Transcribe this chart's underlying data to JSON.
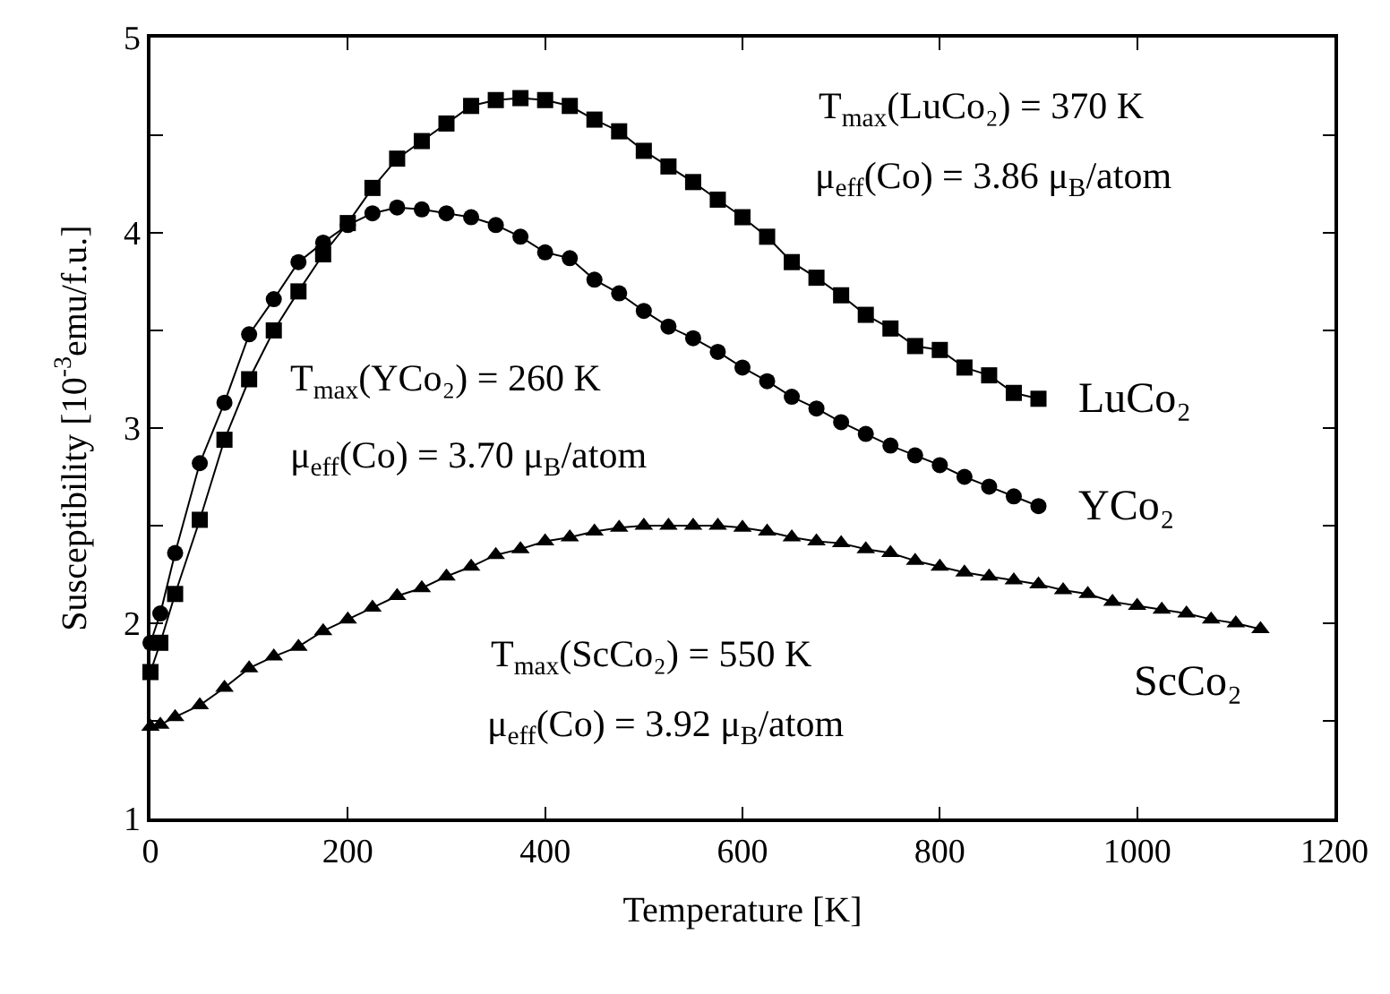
{
  "chart_data": {
    "type": "line",
    "xlabel": "Temperature [K]",
    "ylabel": "Susceptibility [10$^{-3}$emu/f.u.]",
    "xlim": [
      0,
      1200
    ],
    "xticks": [
      0,
      200,
      400,
      600,
      800,
      1000,
      1200
    ],
    "ylim": [
      1,
      5
    ],
    "yticks": [
      1,
      {
        "value": 1.5,
        "label": null
      },
      2,
      {
        "value": 2.5,
        "label": null
      },
      3,
      {
        "value": 3.5,
        "label": null
      },
      4,
      {
        "value": 4.5,
        "label": null
      },
      5
    ],
    "legend": false,
    "line_style": "solid",
    "annotations": [
      "T$_{max}$(LuCo₂) = 370 K",
      "μ$_{eff}$(Co) = 3.86 μ$_{B}$/atom",
      "T$_{max}$(YCo₂) = 260 K",
      "μ$_{eff}$(Co) = 3.70 μ$_{B}$/atom",
      "T$_{max}$(ScCo₂) = 550 K",
      "μ$_{eff}$(Co) = 3.92 μ$_{B}$/atom"
    ],
    "series": [
      {
        "name": "LuCo₂",
        "color": "#000000",
        "marker": "square",
        "x": [
          0,
          10,
          25,
          50,
          75,
          100,
          125,
          150,
          175,
          200,
          225,
          250,
          275,
          300,
          325,
          350,
          375,
          400,
          425,
          450,
          475,
          500,
          525,
          550,
          575,
          600,
          625,
          650,
          675,
          700,
          725,
          750,
          775,
          800,
          825,
          850,
          875,
          900
        ],
        "values": [
          1.75,
          1.9,
          2.15,
          2.53,
          2.94,
          3.25,
          3.5,
          3.7,
          3.89,
          4.05,
          4.23,
          4.38,
          4.47,
          4.56,
          4.65,
          4.68,
          4.69,
          4.68,
          4.65,
          4.58,
          4.52,
          4.42,
          4.34,
          4.26,
          4.17,
          4.08,
          3.98,
          3.85,
          3.77,
          3.68,
          3.58,
          3.51,
          3.42,
          3.4,
          3.31,
          3.27,
          3.18,
          3.15
        ]
      },
      {
        "name": "YCo₂",
        "color": "#000000",
        "marker": "circle",
        "x": [
          0,
          10,
          25,
          50,
          75,
          100,
          125,
          150,
          175,
          200,
          225,
          250,
          275,
          300,
          325,
          350,
          375,
          400,
          425,
          450,
          475,
          500,
          525,
          550,
          575,
          600,
          625,
          650,
          675,
          700,
          725,
          750,
          775,
          800,
          825,
          850,
          875,
          900
        ],
        "values": [
          1.9,
          2.05,
          2.36,
          2.82,
          3.13,
          3.48,
          3.66,
          3.85,
          3.95,
          4.04,
          4.1,
          4.13,
          4.12,
          4.1,
          4.08,
          4.04,
          3.98,
          3.9,
          3.87,
          3.76,
          3.69,
          3.6,
          3.52,
          3.46,
          3.39,
          3.31,
          3.24,
          3.16,
          3.1,
          3.03,
          2.97,
          2.91,
          2.86,
          2.81,
          2.75,
          2.7,
          2.65,
          2.6
        ]
      },
      {
        "name": "ScCo₂",
        "color": "#000000",
        "marker": "triangle",
        "x": [
          0,
          10,
          25,
          50,
          75,
          100,
          125,
          150,
          175,
          200,
          225,
          250,
          275,
          300,
          325,
          350,
          375,
          400,
          425,
          450,
          475,
          500,
          525,
          550,
          575,
          600,
          625,
          650,
          675,
          700,
          725,
          750,
          775,
          800,
          825,
          850,
          875,
          900,
          925,
          950,
          975,
          1000,
          1025,
          1050,
          1075,
          1100,
          1125
        ],
        "values": [
          1.47,
          1.48,
          1.52,
          1.58,
          1.67,
          1.77,
          1.83,
          1.88,
          1.96,
          2.02,
          2.08,
          2.14,
          2.18,
          2.24,
          2.29,
          2.35,
          2.38,
          2.42,
          2.44,
          2.47,
          2.49,
          2.5,
          2.5,
          2.5,
          2.5,
          2.49,
          2.47,
          2.44,
          2.42,
          2.41,
          2.38,
          2.36,
          2.32,
          2.29,
          2.26,
          2.24,
          2.22,
          2.2,
          2.17,
          2.15,
          2.11,
          2.09,
          2.07,
          2.05,
          2.02,
          2.0,
          1.97
        ]
      }
    ]
  }
}
